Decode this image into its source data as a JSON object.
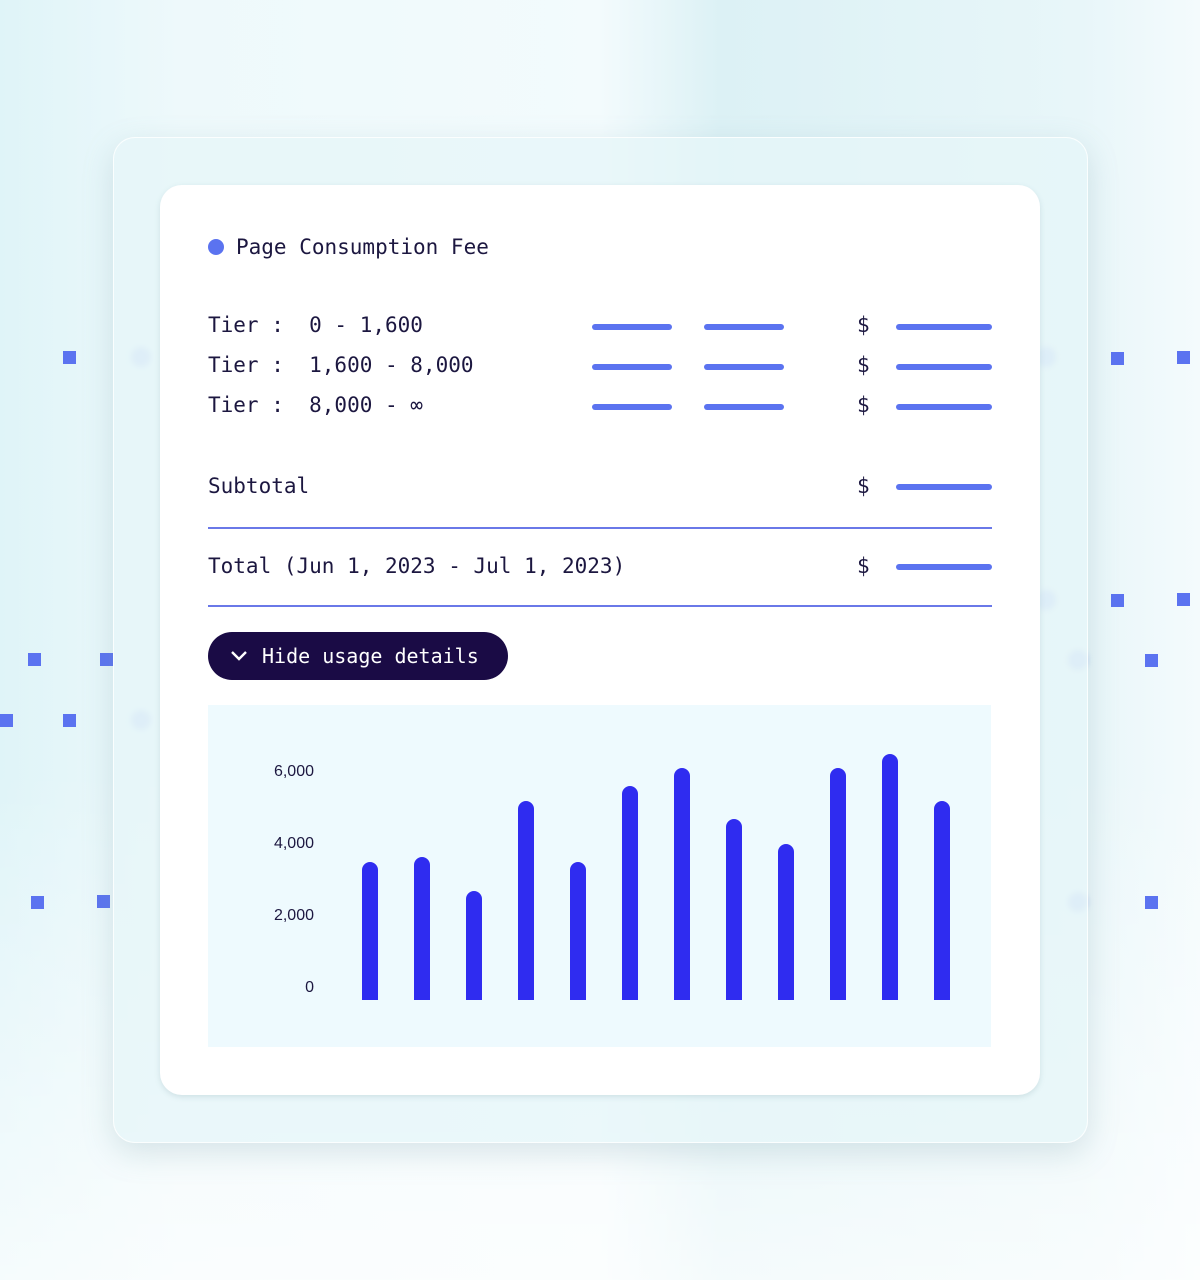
{
  "card": {
    "title": "Page Consumption Fee",
    "tiers": [
      {
        "label": "Tier :  0 - 1,600",
        "currency": "$"
      },
      {
        "label": "Tier :  1,600 - 8,000",
        "currency": "$"
      },
      {
        "label": "Tier :  8,000 - ∞",
        "currency": "$"
      }
    ],
    "subtotal": {
      "label": "Subtotal",
      "currency": "$"
    },
    "total": {
      "label": "Total (Jun 1, 2023 - Jul 1, 2023)",
      "currency": "$"
    },
    "toggle_button": "Hide usage details",
    "accent_color": "#5b73f0",
    "button_color": "#1a0b45"
  },
  "chart_data": {
    "type": "bar",
    "ylim": [
      0,
      6600
    ],
    "y_ticks": [
      "0",
      "2,000",
      "4,000",
      "6,000"
    ],
    "y_tick_values": [
      0,
      2000,
      4000,
      6000
    ],
    "values": [
      3500,
      3650,
      2700,
      5200,
      3500,
      5600,
      6100,
      4700,
      4000,
      6100,
      6500,
      5200
    ],
    "bar_color": "#2f2cf0",
    "grid": false
  }
}
